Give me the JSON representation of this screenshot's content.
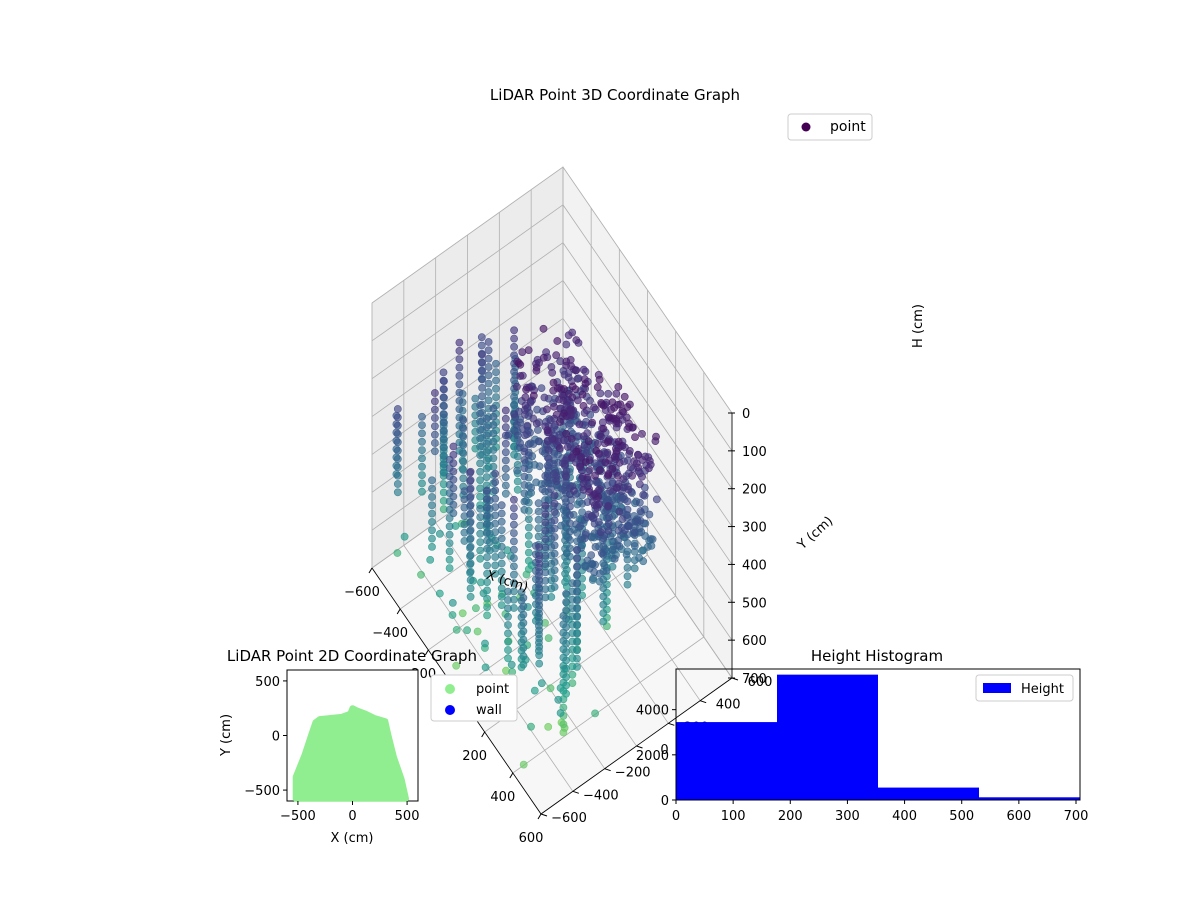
{
  "chart_data": [
    {
      "type": "scatter",
      "projection": "3d",
      "title": "LiDAR Point 3D Coordinate Graph",
      "xlabel": "X (cm)",
      "ylabel": "Y (cm)",
      "zlabel": "H (cm)",
      "xlim": [
        -600,
        600
      ],
      "ylim": [
        -600,
        600
      ],
      "zlim": [
        0,
        700
      ],
      "z_inverted": true,
      "xticks": [
        -600,
        -400,
        -200,
        0,
        200,
        400,
        600
      ],
      "yticks": [
        -600,
        -400,
        -200,
        0,
        200,
        400,
        600
      ],
      "zticks": [
        0,
        100,
        200,
        300,
        400,
        500,
        600,
        700
      ],
      "colormap": "viridis",
      "grid": true,
      "legend": {
        "position": "top-right",
        "entries": [
          {
            "label": "point",
            "color": "#440154"
          }
        ]
      },
      "series": [
        {
          "name": "point",
          "description_of_distribution": "dense cluster of points between x -200..500, y -100..300 with heights 100..400, plus sparser vertical columns spread across x -550..450, y -550..200, heights up to 700",
          "sample_points": [
            {
              "x": 0,
              "y": 0,
              "h": 150
            },
            {
              "x": 100,
              "y": 50,
              "h": 200
            },
            {
              "x": 200,
              "y": 100,
              "h": 250
            },
            {
              "x": 300,
              "y": 150,
              "h": 300
            },
            {
              "x": -100,
              "y": -50,
              "h": 200
            },
            {
              "x": 400,
              "y": 200,
              "h": 250
            },
            {
              "x": -300,
              "y": -200,
              "h": 450
            },
            {
              "x": -400,
              "y": -300,
              "h": 500
            },
            {
              "x": -500,
              "y": -400,
              "h": 600
            },
            {
              "x": -200,
              "y": -500,
              "h": 650
            },
            {
              "x": 100,
              "y": -300,
              "h": 550
            },
            {
              "x": 300,
              "y": -400,
              "h": 700
            }
          ]
        }
      ]
    },
    {
      "type": "scatter",
      "title": "LiDAR Point 2D Coordinate Graph",
      "xlabel": "X (cm)",
      "ylabel": "Y (cm)",
      "xlim": [
        -600,
        600
      ],
      "ylim": [
        -600,
        600
      ],
      "xticks": [
        -500,
        0,
        500
      ],
      "yticks": [
        -500,
        0,
        500
      ],
      "legend": {
        "position": "outside-right",
        "entries": [
          {
            "label": "point",
            "color": "#90ee90"
          },
          {
            "label": "wall",
            "color": "#0000ff"
          }
        ]
      },
      "series": [
        {
          "name": "point",
          "color": "#90ee90",
          "outline": [
            [
              -520,
              -580
            ],
            [
              -520,
              -380
            ],
            [
              -440,
              -180
            ],
            [
              -380,
              0
            ],
            [
              -340,
              120
            ],
            [
              -300,
              150
            ],
            [
              -200,
              160
            ],
            [
              -100,
              170
            ],
            [
              -20,
              200
            ],
            [
              0,
              250
            ],
            [
              40,
              230
            ],
            [
              120,
              200
            ],
            [
              200,
              160
            ],
            [
              300,
              130
            ],
            [
              330,
              0
            ],
            [
              380,
              -200
            ],
            [
              450,
              -400
            ],
            [
              490,
              -580
            ]
          ]
        },
        {
          "name": "wall",
          "color": "#0000ff",
          "points": []
        }
      ]
    },
    {
      "type": "bar",
      "title": "Height Histogram",
      "xlabel": "",
      "ylabel": "",
      "xlim": [
        0,
        707
      ],
      "ylim": [
        0,
        5800
      ],
      "xticks": [
        0,
        100,
        200,
        300,
        400,
        500,
        600,
        700
      ],
      "yticks": [
        0,
        2000,
        4000
      ],
      "legend": {
        "position": "top-right",
        "entries": [
          {
            "label": "Height",
            "color": "#0000ff"
          }
        ]
      },
      "series": [
        {
          "name": "Height",
          "color": "#0000ff",
          "bin_edges": [
            0,
            176.75,
            353.5,
            530.25,
            707
          ],
          "values": [
            3450,
            5550,
            550,
            120
          ]
        }
      ]
    }
  ],
  "layout": {
    "three_d_panel_bg": "#f2f2f2",
    "grid_color": "#b0b0b0"
  }
}
